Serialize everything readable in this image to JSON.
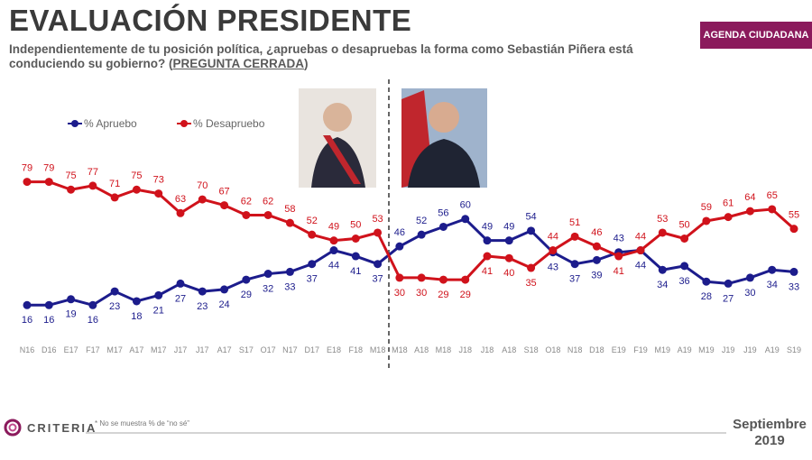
{
  "chart_data": {
    "type": "line",
    "title": "EVALUACIÓN PRESIDENTE",
    "subtitle": "Independientemente de tu posición política, ¿apruebas o desapruebas la forma como Sebastián Piñera está conduciendo su gobierno?",
    "subtitle_emphasis": "PREGUNTA CERRADA",
    "badge": "AGENDA CIUDADANA",
    "brand": "CRITERIA",
    "footnote": "* No se muestra % de “no sé”",
    "date_month": "Septiembre",
    "date_year": "2019",
    "categories": [
      "N16",
      "D16",
      "E17",
      "F17",
      "M17",
      "A17",
      "M17",
      "J17",
      "J17",
      "A17",
      "S17",
      "O17",
      "N17",
      "D17",
      "E18",
      "F18",
      "M18",
      "M18",
      "A18",
      "M18",
      "J18",
      "J18",
      "A18",
      "S18",
      "O18",
      "N18",
      "D18",
      "E19",
      "F19",
      "M19",
      "A19",
      "M19",
      "J19",
      "J19",
      "A19",
      "S19"
    ],
    "series": [
      {
        "name": "% Apruebo",
        "color": "#1c1c8c",
        "values": [
          16,
          16,
          19,
          16,
          23,
          18,
          21,
          27,
          23,
          24,
          29,
          32,
          33,
          37,
          44,
          41,
          37,
          46,
          52,
          56,
          60,
          49,
          49,
          54,
          43,
          37,
          39,
          43,
          44,
          34,
          36,
          28,
          27,
          30,
          34,
          33
        ]
      },
      {
        "name": "% Desapruebo",
        "color": "#d0121b",
        "values": [
          79,
          79,
          75,
          77,
          71,
          75,
          73,
          63,
          70,
          67,
          62,
          62,
          58,
          52,
          49,
          50,
          53,
          30,
          30,
          29,
          29,
          41,
          40,
          35,
          44,
          51,
          46,
          41,
          44,
          53,
          50,
          59,
          61,
          64,
          65,
          55
        ]
      }
    ]
  }
}
